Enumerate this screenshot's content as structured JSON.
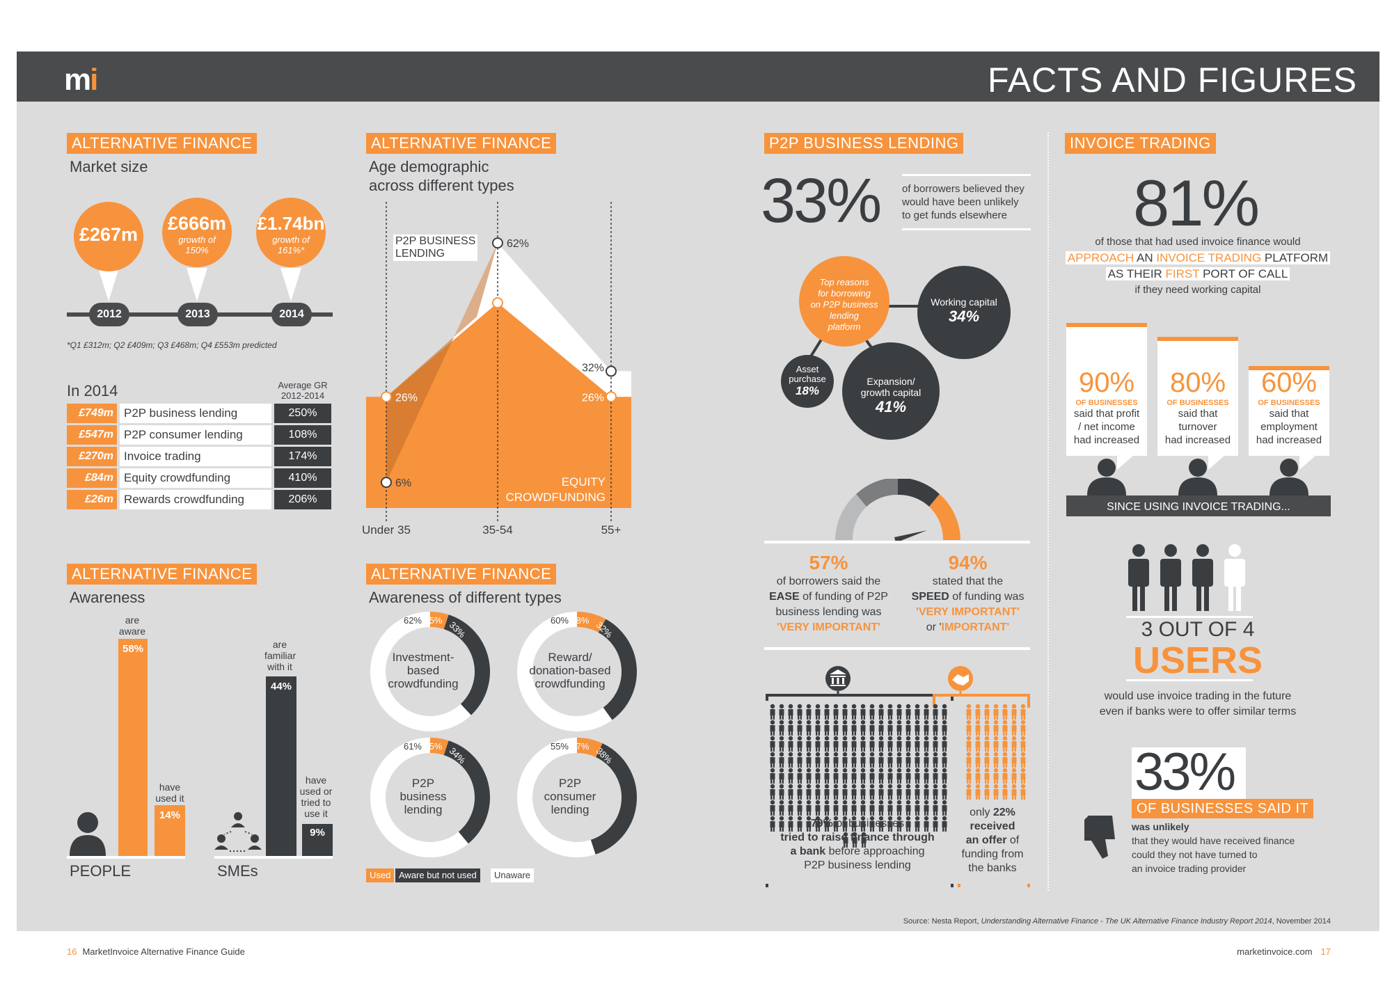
{
  "header": {
    "logo_m": "m",
    "logo_i": "i",
    "title": "FACTS AND FIGURES"
  },
  "market": {
    "tag": "ALTERNATIVE FINANCE",
    "subtitle": "Market size",
    "bubbles": [
      {
        "value": "£267m",
        "growth": ""
      },
      {
        "value": "£666m",
        "growth": "growth of 150%"
      },
      {
        "value": "£1.74bn",
        "growth": "growth of 161%*"
      }
    ],
    "years": [
      "2012",
      "2013",
      "2014"
    ],
    "footnote": "*Q1 £312m; Q2 £409m; Q3 £468m; Q4 £553m predicted"
  },
  "in2014": {
    "title": "In 2014",
    "col_header": "Average GR 2012-2014",
    "rows": [
      {
        "amount": "£749m",
        "name": "P2P business lending",
        "gr": "250%"
      },
      {
        "amount": "£547m",
        "name": "P2P consumer lending",
        "gr": "108%"
      },
      {
        "amount": "£270m",
        "name": "Invoice trading",
        "gr": "174%"
      },
      {
        "amount": "£84m",
        "name": "Equity crowdfunding",
        "gr": "410%"
      },
      {
        "amount": "£26m",
        "name": "Rewards crowdfunding",
        "gr": "206%"
      }
    ]
  },
  "age": {
    "tag": "ALTERNATIVE FINANCE",
    "subtitle1": "Age demographic",
    "subtitle2": "across different types",
    "p2p_label1": "P2P BUSINESS",
    "p2p_label2": "LENDING",
    "equity_label1": "EQUITY",
    "equity_label2": "CROWDFUNDING"
  },
  "chart_data": [
    {
      "type": "area",
      "categories": [
        "Under 35",
        "35-54",
        "55+"
      ],
      "series": [
        {
          "name": "P2P BUSINESS LENDING",
          "values": [
            6,
            62,
            32
          ],
          "labels": [
            "6%",
            "62%",
            "32%"
          ]
        },
        {
          "name": "EQUITY CROWDFUNDING",
          "values": [
            26,
            48,
            26
          ],
          "labels": [
            "26%",
            "48%",
            "26%"
          ]
        }
      ]
    },
    {
      "type": "bar",
      "title": "Awareness",
      "groups": [
        {
          "name": "PEOPLE",
          "bars": [
            {
              "label": "are aware",
              "value": 58,
              "text": "58%"
            },
            {
              "label": "have used it",
              "value": 14,
              "text": "14%"
            }
          ]
        },
        {
          "name": "SMEs",
          "bars": [
            {
              "label": "are familiar with it",
              "value": 44,
              "text": "44%"
            },
            {
              "label": "have used or tried to use it",
              "value": 9,
              "text": "9%"
            }
          ]
        }
      ]
    },
    {
      "type": "pie",
      "title": "Awareness of different types",
      "legend": [
        "Used",
        "Aware but not used",
        "Unaware"
      ],
      "donuts": [
        {
          "name": "Investment-based crowdfunding",
          "used": 5,
          "aware": 33,
          "unaware": 62
        },
        {
          "name": "Reward/ donation-based crowdfunding",
          "used": 8,
          "aware": 32,
          "unaware": 60
        },
        {
          "name": "P2P business lending",
          "used": 5,
          "aware": 34,
          "unaware": 61
        },
        {
          "name": "P2P consumer lending",
          "used": 7,
          "aware": 38,
          "unaware": 55
        }
      ]
    }
  ],
  "awareness": {
    "tag": "ALTERNATIVE FINANCE",
    "subtitle": "Awareness",
    "l_aware1": "are",
    "l_aware2": "aware",
    "l_used1": "have",
    "l_used2": "used it",
    "l_fam1": "are",
    "l_fam2": "familiar",
    "l_fam3": "with it",
    "l_try1": "have",
    "l_try2": "used or",
    "l_try3": "tried to",
    "l_try4": "use it",
    "v58": "58%",
    "v14": "14%",
    "v44": "44%",
    "v9": "9%",
    "people": "PEOPLE",
    "smes": "SMEs"
  },
  "types": {
    "tag": "ALTERNATIVE FINANCE",
    "subtitle": "Awareness of different types",
    "d1a": "Investment-",
    "d1b": "based",
    "d1c": "crowdfunding",
    "d2a": "Reward/",
    "d2b": "donation-based",
    "d2c": "crowdfunding",
    "d3a": "P2P",
    "d3b": "business",
    "d3c": "lending",
    "d4a": "P2P",
    "d4b": "consumer",
    "d4c": "lending",
    "p1": [
      "62%",
      "5%",
      "33%"
    ],
    "p2": [
      "60%",
      "8%",
      "32%"
    ],
    "p3": [
      "61%",
      "5%",
      "34%"
    ],
    "p4": [
      "55%",
      "7%",
      "38%"
    ],
    "leg_used": "Used",
    "leg_aware": "Aware but not used",
    "leg_unaware": "Unaware"
  },
  "p2p": {
    "tag": "P2P BUSINESS LENDING",
    "big": "33%",
    "big_text1": "of borrowers believed they",
    "big_text2": "would have been unlikely",
    "big_text3": "to get funds elsewhere",
    "reasons1": "Top reasons",
    "reasons2": "for borrowing",
    "reasons3": "on P2P business",
    "reasons4": "lending",
    "reasons5": "platform",
    "wc": "Working capital",
    "wc_v": "34%",
    "exp1": "Expansion/",
    "exp2": "growth capital",
    "exp_v": "41%",
    "asset1": "Asset",
    "asset2": "purchase",
    "asset_v": "18%",
    "s57": "57%",
    "s57a": "of borrowers said the",
    "s57b_1": "EASE",
    "s57b_2": " of funding of P2P",
    "s57c": "business lending was",
    "s57d": "'VERY IMPORTANT'",
    "s94": "94%",
    "s94a": "stated that the",
    "s94b_1": "SPEED",
    "s94b_2": " of funding was",
    "s94c": "'VERY IMPORTANT'",
    "s94d_1": "or '",
    "s94d_2": "IMPORTANT'",
    "b79_1": "79%",
    "b79_2": " of businesses",
    "b79_3": "tried to raise finance through",
    "b79_4": "a bank",
    "b79_5": " before approaching",
    "b79_6": "P2P business lending",
    "b22_1": "only ",
    "b22_2": "22%",
    "b22_3": "received",
    "b22_4": "an offer",
    "b22_5": " of",
    "b22_6": "funding from",
    "b22_7": "the banks"
  },
  "invoice": {
    "tag": "INVOICE TRADING",
    "big": "81%",
    "t1": "of those that had used invoice finance would",
    "t2a": "APPROACH",
    "t2b": " AN ",
    "t2c": "INVOICE TRADING",
    "t2d": " PLATFORM",
    "t3a": "AS THEIR ",
    "t3b": "FIRST",
    "t3c": " PORT OF CALL",
    "t4": "if they need working capital",
    "stats": [
      {
        "v": "90%",
        "of": "OF BUSINESSES",
        "l1": "said that profit",
        "l2": "/ net income",
        "l3": "had increased"
      },
      {
        "v": "80%",
        "of": "OF BUSINESSES",
        "l1": "said that",
        "l2": "turnover",
        "l3": "had increased"
      },
      {
        "v": "60%",
        "of": "OF BUSINESSES",
        "l1": "said that",
        "l2": "employment",
        "l3": "had increased"
      }
    ],
    "since": "SINCE USING INVOICE TRADING...",
    "out_of": "3 OUT OF 4",
    "users": "USERS",
    "users_t1": "would use invoice trading in the future",
    "users_t2": "even if banks were to offer similar terms",
    "big33": "33%",
    "said": "OF BUSINESSES SAID IT",
    "said_t1": "was unlikely",
    "said_t2": "that they would have received finance",
    "said_t3": "could they not have turned to",
    "said_t4": "an invoice trading provider"
  },
  "source": {
    "prefix": "Source: Nesta Report, ",
    "title": "Understanding Alternative Finance - The UK Alternative Finance Industry Report 2014",
    "suffix": ", November 2014"
  },
  "footer": {
    "left_num": "16",
    "left_text": "MarketInvoice Alternative Finance Guide",
    "right_text": "marketinvoice.com",
    "right_num": "17"
  }
}
